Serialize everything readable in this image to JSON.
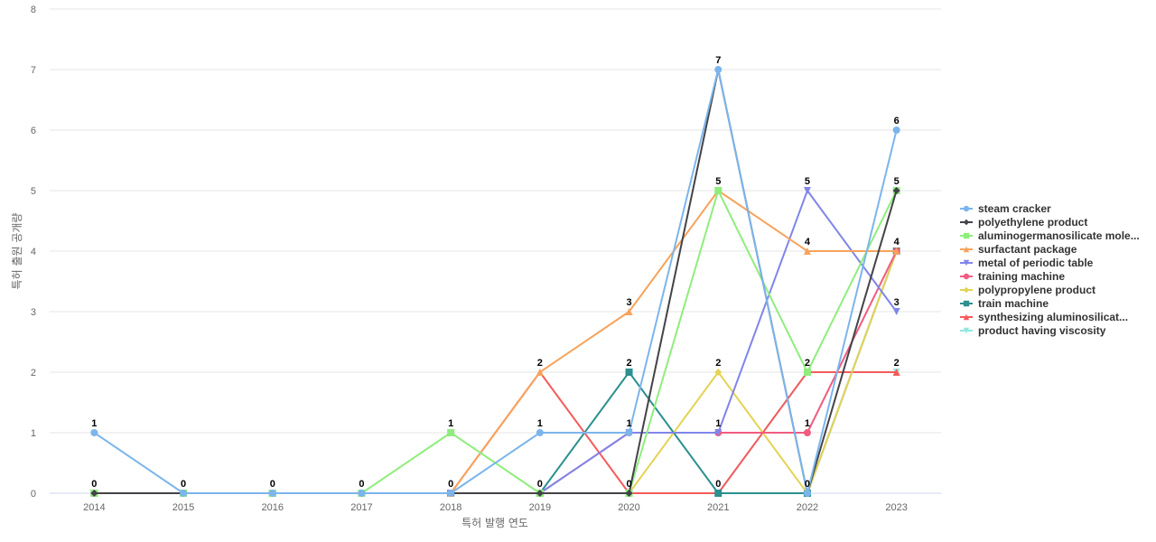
{
  "chart_data": {
    "type": "line",
    "title": "",
    "xlabel": "특허 발행 연도",
    "ylabel": "특허 출원 공개량",
    "categories": [
      "2014",
      "2015",
      "2016",
      "2017",
      "2018",
      "2019",
      "2020",
      "2021",
      "2022",
      "2023"
    ],
    "ylim": [
      0,
      8
    ],
    "yticks": [
      0,
      1,
      2,
      3,
      4,
      5,
      6,
      7,
      8
    ],
    "grid": true,
    "legend_position": "right",
    "series": [
      {
        "name": "steam cracker",
        "color": "#7cb5ec",
        "marker": "circle",
        "values": [
          1,
          0,
          0,
          0,
          0,
          1,
          1,
          7,
          0,
          6
        ]
      },
      {
        "name": "polyethylene product",
        "color": "#434348",
        "marker": "diamond",
        "values": [
          0,
          0,
          0,
          0,
          0,
          0,
          0,
          7,
          0,
          5
        ]
      },
      {
        "name": "aluminogermanosilicate mole...",
        "color": "#90ed7d",
        "marker": "square",
        "values": [
          0,
          0,
          0,
          0,
          1,
          0,
          0,
          5,
          2,
          5
        ]
      },
      {
        "name": "surfactant package",
        "color": "#f7a35c",
        "marker": "triangle",
        "values": [
          0,
          0,
          0,
          0,
          0,
          2,
          3,
          5,
          4,
          4
        ]
      },
      {
        "name": "metal of periodic table",
        "color": "#8085e9",
        "marker": "triangle-down",
        "values": [
          0,
          0,
          0,
          0,
          0,
          0,
          1,
          1,
          5,
          3
        ]
      },
      {
        "name": "training machine",
        "color": "#f15c80",
        "marker": "circle",
        "values": [
          0,
          0,
          0,
          0,
          0,
          0,
          1,
          1,
          1,
          4
        ]
      },
      {
        "name": "polypropylene product",
        "color": "#e4d354",
        "marker": "diamond",
        "values": [
          0,
          0,
          0,
          0,
          0,
          0,
          0,
          2,
          0,
          4
        ]
      },
      {
        "name": "train machine",
        "color": "#2b908f",
        "marker": "square",
        "values": [
          0,
          0,
          0,
          0,
          0,
          0,
          2,
          0,
          0,
          4
        ]
      },
      {
        "name": "synthesizing aluminosilicat...",
        "color": "#f45b5b",
        "marker": "triangle",
        "values": [
          0,
          0,
          0,
          0,
          0,
          2,
          0,
          0,
          2,
          2
        ]
      },
      {
        "name": "product having viscosity",
        "color": "#91e8e1",
        "marker": "triangle-down",
        "values": [
          0,
          0,
          0,
          0,
          0,
          0,
          0,
          0,
          2,
          2
        ]
      }
    ],
    "data_labels": [
      {
        "category": "2014",
        "value": 1,
        "text": "1"
      },
      {
        "category": "2014",
        "value": 0,
        "text": "0"
      },
      {
        "category": "2015",
        "value": 0,
        "text": "0"
      },
      {
        "category": "2016",
        "value": 0,
        "text": "0"
      },
      {
        "category": "2017",
        "value": 0,
        "text": "0"
      },
      {
        "category": "2018",
        "value": 1,
        "text": "1"
      },
      {
        "category": "2018",
        "value": 0,
        "text": "0"
      },
      {
        "category": "2019",
        "value": 2,
        "text": "2"
      },
      {
        "category": "2019",
        "value": 1,
        "text": "1"
      },
      {
        "category": "2019",
        "value": 0,
        "text": "0"
      },
      {
        "category": "2020",
        "value": 3,
        "text": "3"
      },
      {
        "category": "2020",
        "value": 2,
        "text": "2"
      },
      {
        "category": "2020",
        "value": 1,
        "text": "1"
      },
      {
        "category": "2020",
        "value": 0,
        "text": "0"
      },
      {
        "category": "2021",
        "value": 7,
        "text": "7"
      },
      {
        "category": "2021",
        "value": 5,
        "text": "5"
      },
      {
        "category": "2021",
        "value": 2,
        "text": "2"
      },
      {
        "category": "2021",
        "value": 1,
        "text": "1"
      },
      {
        "category": "2021",
        "value": 0,
        "text": "0"
      },
      {
        "category": "2022",
        "value": 5,
        "text": "5"
      },
      {
        "category": "2022",
        "value": 4,
        "text": "4"
      },
      {
        "category": "2022",
        "value": 2,
        "text": "2"
      },
      {
        "category": "2022",
        "value": 1,
        "text": "1"
      },
      {
        "category": "2022",
        "value": 0,
        "text": "0"
      },
      {
        "category": "2023",
        "value": 6,
        "text": "6"
      },
      {
        "category": "2023",
        "value": 5,
        "text": "5"
      },
      {
        "category": "2023",
        "value": 4,
        "text": "4"
      },
      {
        "category": "2023",
        "value": 3,
        "text": "3"
      },
      {
        "category": "2023",
        "value": 2,
        "text": "2"
      }
    ]
  }
}
